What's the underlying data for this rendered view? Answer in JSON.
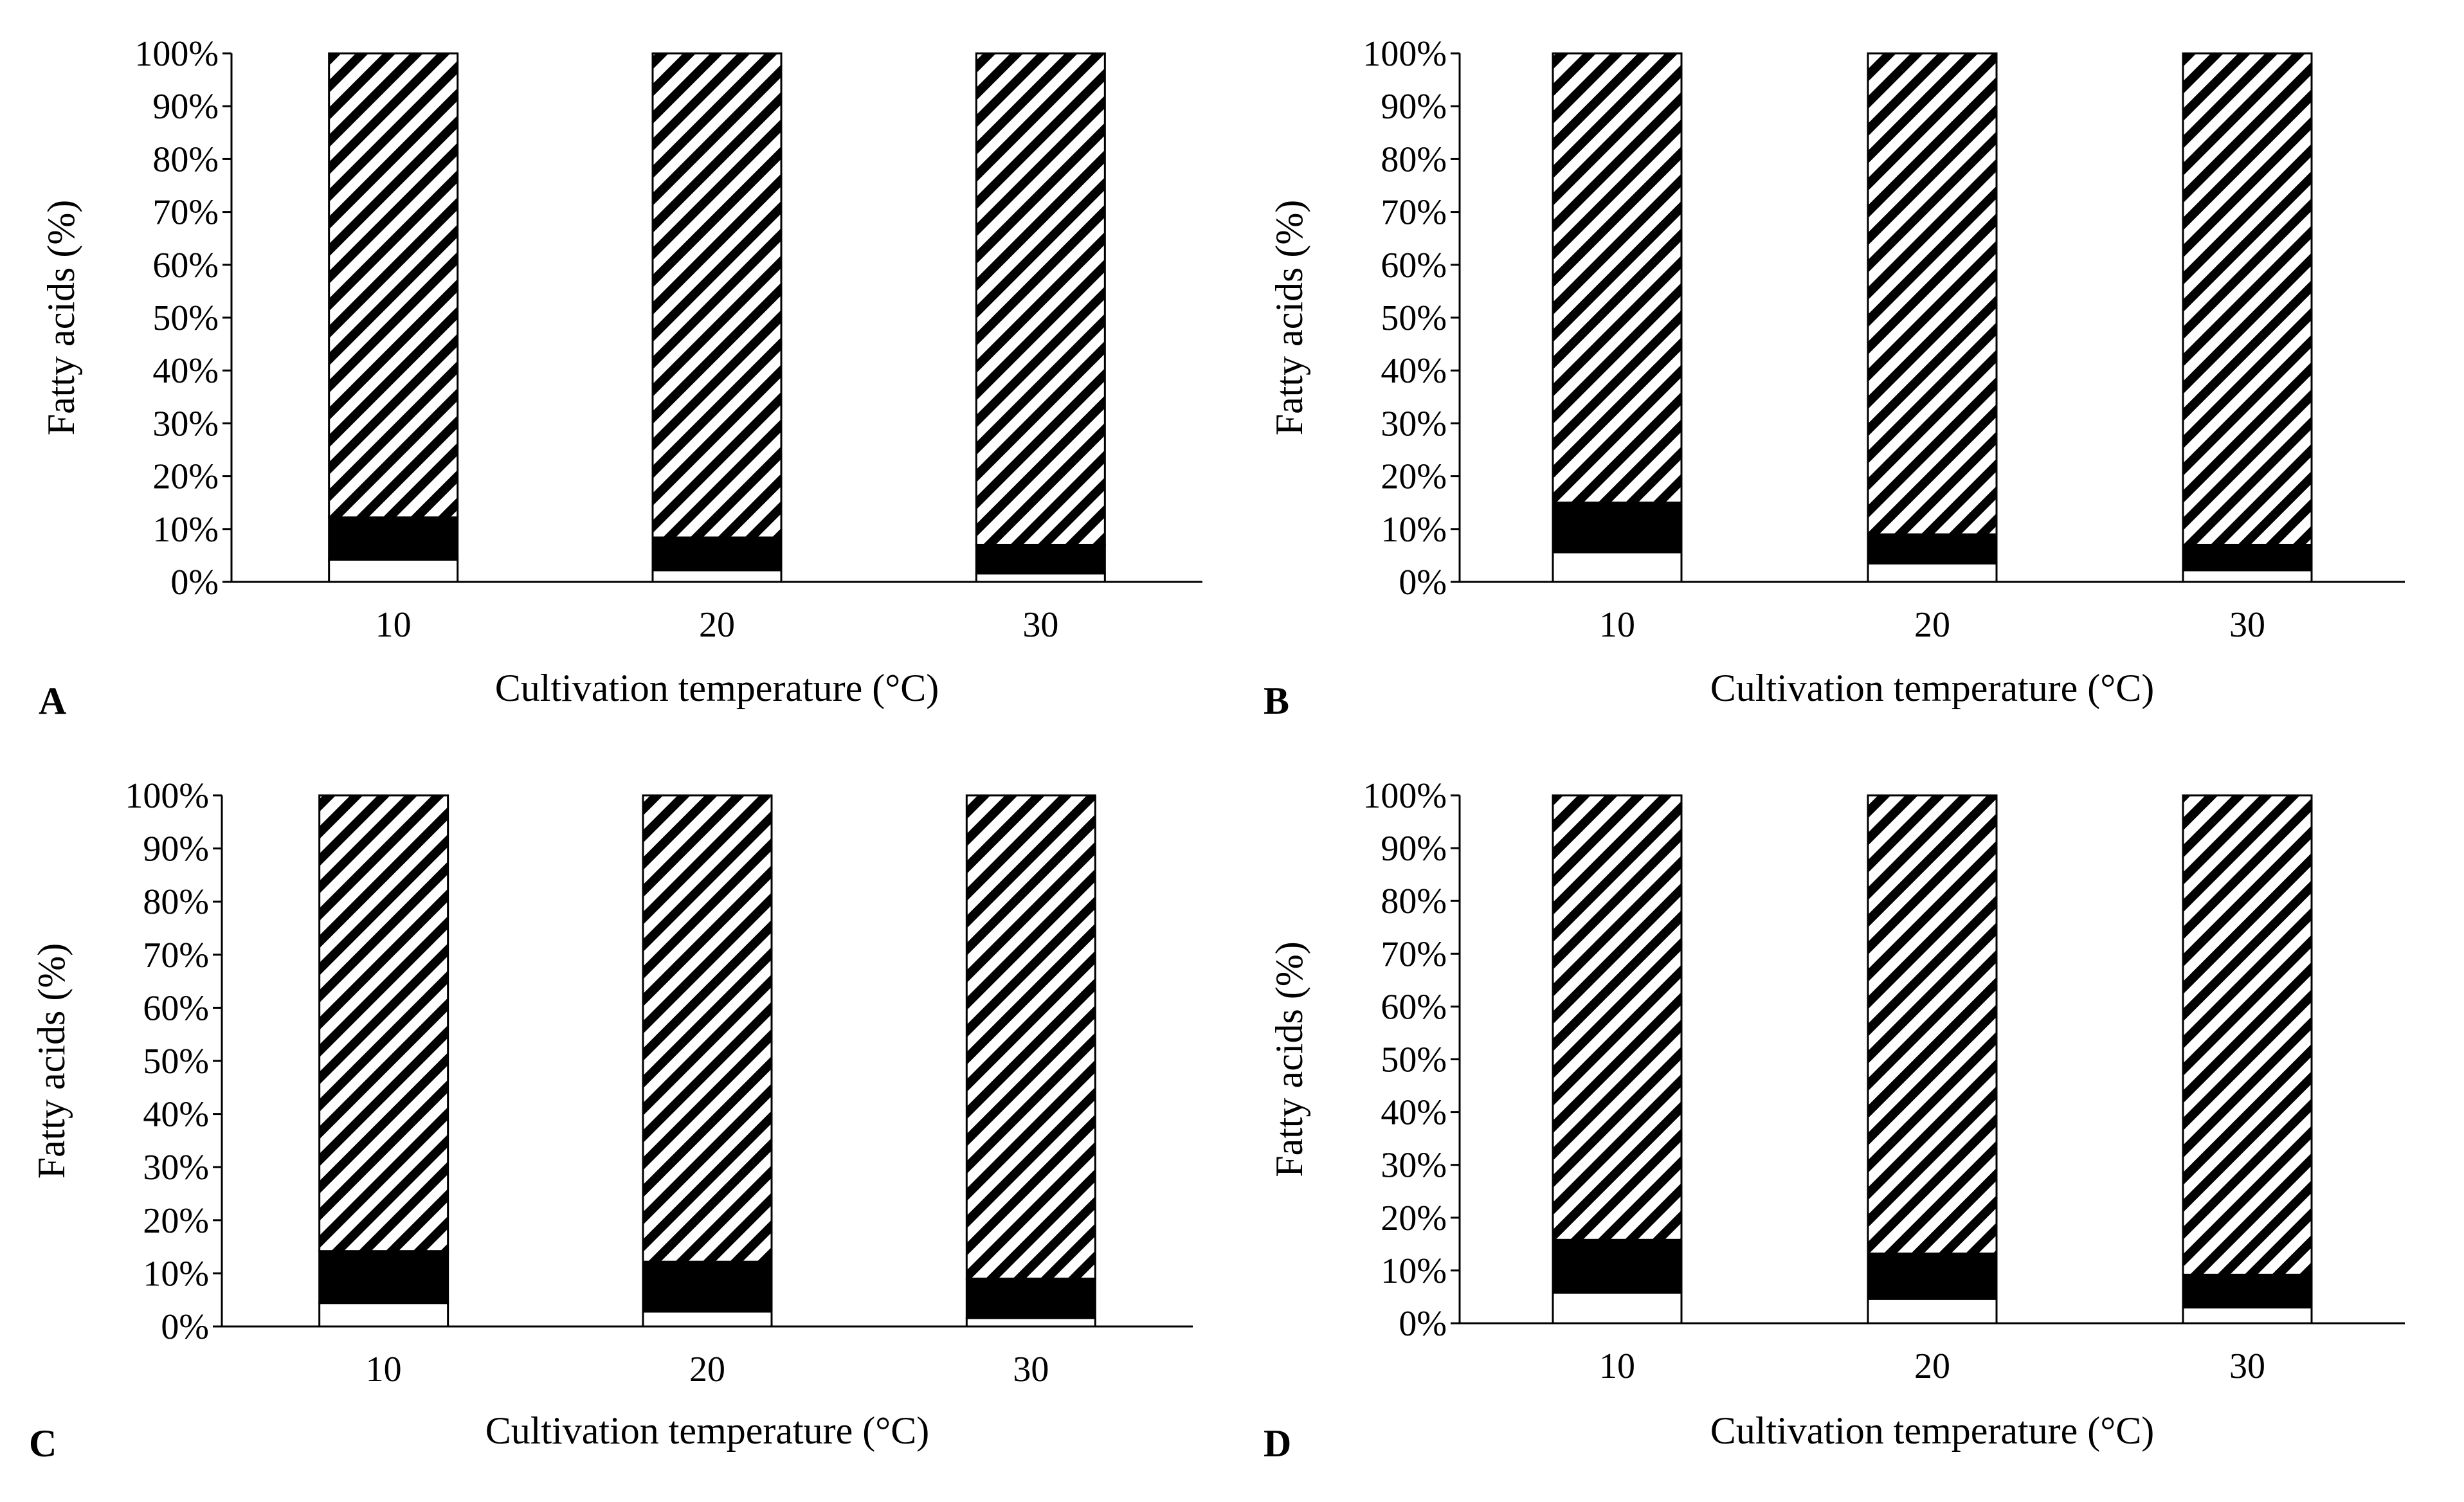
{
  "figure": {
    "colors": {
      "background": "#ffffff",
      "ink": "#000000",
      "saturated": "#ffffff",
      "monounsaturated": "#000000",
      "polyunsaturated_hatch": "#000000"
    },
    "hatch_pattern": "diagonal-stripes"
  },
  "chart_data": [
    {
      "type": "bar",
      "stacked": true,
      "panel_label": "A",
      "categories": [
        "10",
        "20",
        "30"
      ],
      "series": [
        {
          "name": "bottom (white)",
          "values": [
            4.2,
            2.2,
            1.6
          ]
        },
        {
          "name": "middle (black)",
          "values": [
            8.0,
            6.2,
            5.4
          ]
        },
        {
          "name": "top (hatched)",
          "values": [
            87.8,
            91.6,
            93.0
          ]
        }
      ],
      "xlabel": "Cultivation temperature (°C)",
      "ylabel": "Fatty acids (%)",
      "ylim": [
        0,
        100
      ],
      "yticks": [
        "0%",
        "10%",
        "20%",
        "30%",
        "40%",
        "50%",
        "60%",
        "70%",
        "80%",
        "90%",
        "100%"
      ]
    },
    {
      "type": "bar",
      "stacked": true,
      "panel_label": "B",
      "categories": [
        "10",
        "20",
        "30"
      ],
      "series": [
        {
          "name": "bottom (white)",
          "values": [
            5.6,
            3.5,
            2.2
          ]
        },
        {
          "name": "middle (black)",
          "values": [
            9.4,
            5.5,
            4.8
          ]
        },
        {
          "name": "top (hatched)",
          "values": [
            85.0,
            91.0,
            93.0
          ]
        }
      ],
      "xlabel": "Cultivation temperature (°C)",
      "ylabel": "Fatty acids (%)",
      "ylim": [
        0,
        100
      ],
      "yticks": [
        "0%",
        "10%",
        "20%",
        "30%",
        "40%",
        "50%",
        "60%",
        "70%",
        "80%",
        "90%",
        "100%"
      ]
    },
    {
      "type": "bar",
      "stacked": true,
      "panel_label": "C",
      "categories": [
        "10",
        "20",
        "30"
      ],
      "series": [
        {
          "name": "bottom (white)",
          "values": [
            4.4,
            2.8,
            1.6
          ]
        },
        {
          "name": "middle (black)",
          "values": [
            9.8,
            9.4,
            7.4
          ]
        },
        {
          "name": "top (hatched)",
          "values": [
            85.8,
            87.8,
            91.0
          ]
        }
      ],
      "xlabel": "Cultivation temperature (°C)",
      "ylabel": "Fatty acids (%)",
      "ylim": [
        0,
        100
      ],
      "yticks": [
        "0%",
        "10%",
        "20%",
        "30%",
        "40%",
        "50%",
        "60%",
        "70%",
        "80%",
        "90%",
        "100%"
      ]
    },
    {
      "type": "bar",
      "stacked": true,
      "panel_label": "D",
      "categories": [
        "10",
        "20",
        "30"
      ],
      "series": [
        {
          "name": "bottom (white)",
          "values": [
            5.8,
            4.6,
            3.0
          ]
        },
        {
          "name": "middle (black)",
          "values": [
            10.0,
            8.6,
            6.2
          ]
        },
        {
          "name": "top (hatched)",
          "values": [
            84.2,
            86.8,
            90.8
          ]
        }
      ],
      "xlabel": "Cultivation temperature (°C)",
      "ylabel": "Fatty acids (%)",
      "ylim": [
        0,
        100
      ],
      "yticks": [
        "0%",
        "10%",
        "20%",
        "30%",
        "40%",
        "50%",
        "60%",
        "70%",
        "80%",
        "90%",
        "100%"
      ]
    }
  ]
}
